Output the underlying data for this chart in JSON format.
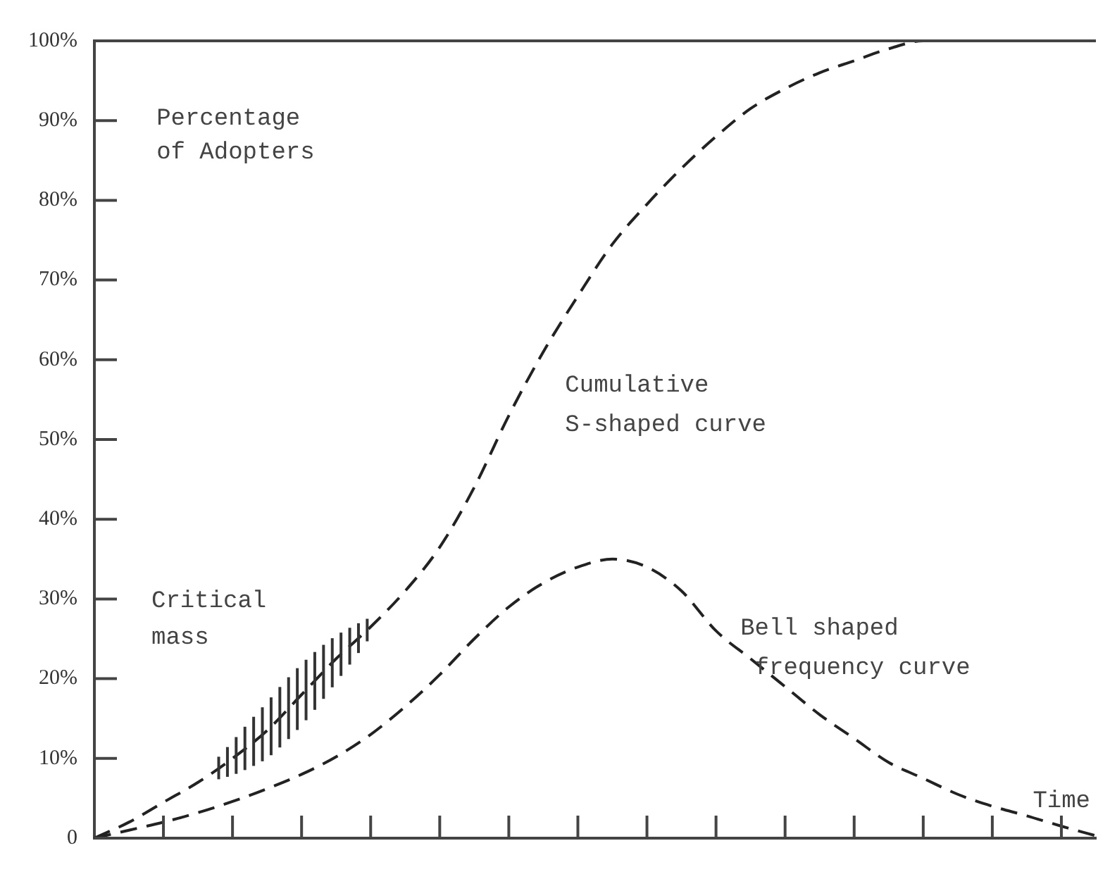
{
  "chart_data": {
    "type": "line",
    "ylabel": "Percentage\nof Adopters",
    "xlabel": "Time",
    "annotations": [
      "Critical\nmass"
    ],
    "categories": [
      null,
      null,
      null,
      null,
      null,
      null,
      null,
      null,
      null,
      null,
      null,
      null,
      null,
      null,
      null,
      null,
      null,
      null,
      null,
      null,
      null,
      null,
      null,
      null,
      null,
      null,
      null,
      null,
      null,
      null
    ],
    "series": [
      {
        "name": "Cumulative\nS-shaped curve",
        "color": "#222222",
        "values": [
          0,
          2,
          4.5,
          7,
          10,
          13.5,
          18,
          22.5,
          26.5,
          31,
          36.5,
          44,
          53,
          61,
          68,
          74.5,
          79.5,
          84,
          88,
          91.5,
          94,
          96,
          97.5,
          99,
          100,
          100,
          100,
          100,
          100,
          100
        ]
      },
      {
        "name": "Bell shaped\n frequency curve",
        "color": "#222222",
        "values": [
          0,
          1,
          2,
          3.2,
          4.6,
          6.2,
          8,
          10.2,
          13,
          16.5,
          20.5,
          25,
          29,
          32,
          34,
          35,
          34,
          31,
          26,
          22.5,
          19,
          15.5,
          12.5,
          9.5,
          7.5,
          5.5,
          4,
          2.8,
          1.5,
          0.3
        ]
      }
    ],
    "ylim": [
      0,
      100
    ],
    "yticks": [
      0,
      {
        "value": 10,
        "label": "10%"
      },
      {
        "value": 20,
        "label": "20%"
      },
      {
        "value": 30,
        "label": "30%"
      },
      {
        "value": 40,
        "label": "40%"
      },
      {
        "value": 50,
        "label": "50%"
      },
      {
        "value": 60,
        "label": "60%"
      },
      {
        "value": 70,
        "label": "70%"
      },
      {
        "value": 80,
        "label": "80%"
      },
      {
        "value": 90,
        "label": "90%"
      },
      {
        "value": 100,
        "label": "100%"
      }
    ],
    "tick_labels": "y",
    "grid": false,
    "legend": false,
    "marker": "none",
    "line_style": "dashed"
  }
}
